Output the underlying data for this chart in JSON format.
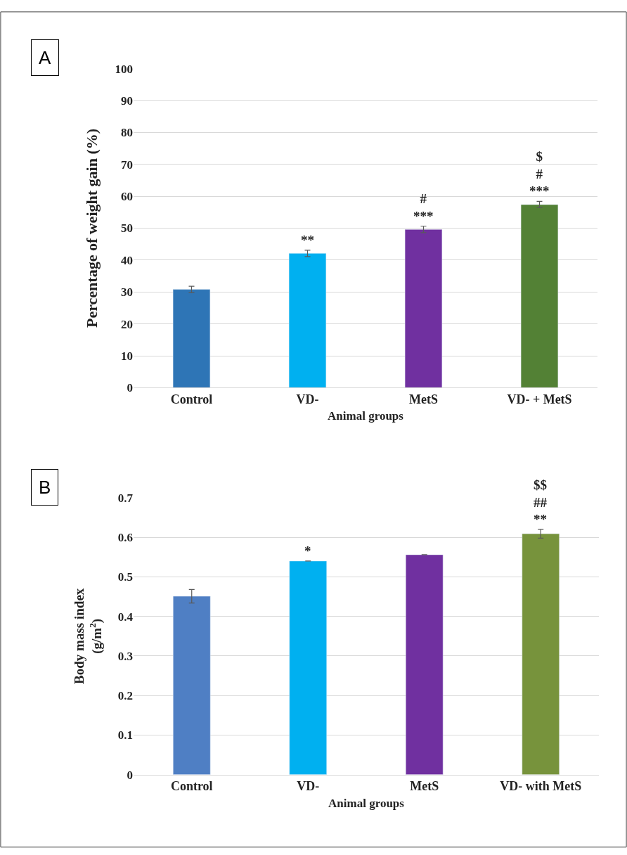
{
  "chart_data": [
    {
      "type": "bar",
      "categories": [
        "Control",
        "VD-",
        "MetS",
        "VD- + MetS"
      ],
      "values": [
        30.8,
        42.1,
        49.6,
        57.4
      ],
      "colors": [
        "#2e75b6",
        "#00b0f0",
        "#7030a0",
        "#538135"
      ],
      "errors": [
        1,
        1,
        1,
        1
      ],
      "ylim": [
        0,
        100
      ],
      "yticks": [
        0,
        10,
        20,
        30,
        40,
        50,
        60,
        70,
        80,
        90,
        100
      ],
      "ylabel": "Percentage of weight gain (%)",
      "xlabel": "Animal groups",
      "grid": "y",
      "value_labels": [
        null,
        "**",
        "#\n***",
        "$\n#\n***"
      ],
      "annotations": [
        "A"
      ]
    },
    {
      "type": "bar",
      "categories": [
        "Control",
        "VD-",
        "MetS",
        "VD- with MetS"
      ],
      "values": [
        0.451,
        0.54,
        0.556,
        0.609
      ],
      "colors": [
        "#4f7fc4",
        "#00b0f0",
        "#7030a0",
        "#77933c"
      ],
      "errors": [
        0.017,
        null,
        null,
        0.011
      ],
      "ylim": [
        0,
        0.7
      ],
      "yticks": [
        0,
        0.1,
        0.2,
        0.3,
        0.4,
        0.5,
        0.6,
        0.7
      ],
      "ylabel": "Body mass index\n(g/m$^{2}$)",
      "xlabel": "Animal groups",
      "grid": "y",
      "value_labels": [
        null,
        "*",
        null,
        "$$\n##\n**"
      ],
      "annotations": [
        "B"
      ]
    }
  ]
}
